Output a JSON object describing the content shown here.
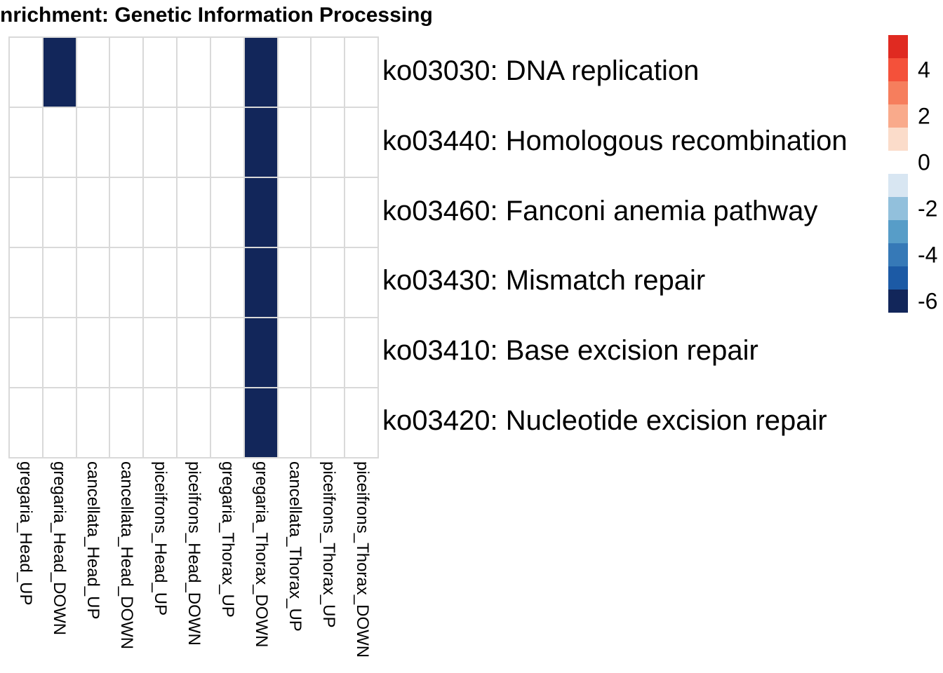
{
  "title": "nrichment: Genetic Information Processing",
  "chart_data": {
    "type": "heatmap",
    "title": "nrichment: Genetic Information Processing",
    "columns": [
      "gregaria_Head_UP",
      "gregaria_Head_DOWN",
      "cancellata_Head_UP",
      "cancellata_Head_DOWN",
      "piceifrons_Head_UP",
      "piceifrons_Head_DOWN",
      "gregaria_Thorax_UP",
      "gregaria_Thorax_DOWN",
      "cancellata_Thorax_UP",
      "piceifrons_Thorax_UP",
      "piceifrons_Thorax_DOWN"
    ],
    "rows": [
      "ko03030: DNA replication",
      "ko03440: Homologous recombination",
      "ko03460: Fanconi anemia pathway",
      "ko03430: Mismatch repair",
      "ko03410: Base excision repair",
      "ko03420: Nucleotide excision repair"
    ],
    "matrix": [
      [
        null,
        -6,
        null,
        null,
        null,
        null,
        null,
        -6,
        null,
        null,
        null
      ],
      [
        null,
        null,
        null,
        null,
        null,
        null,
        null,
        -6,
        null,
        null,
        null
      ],
      [
        null,
        null,
        null,
        null,
        null,
        null,
        null,
        -6,
        null,
        null,
        null
      ],
      [
        null,
        null,
        null,
        null,
        null,
        null,
        null,
        -6,
        null,
        null,
        null
      ],
      [
        null,
        null,
        null,
        null,
        null,
        null,
        null,
        -6,
        null,
        null,
        null
      ],
      [
        null,
        null,
        null,
        null,
        null,
        null,
        null,
        -6,
        null,
        null,
        null
      ]
    ],
    "empty_cell_color": "#ffffff",
    "grid_line_color": "#d9d9d9",
    "legend": {
      "position": "right",
      "block_values": [
        5,
        4,
        3,
        2,
        1,
        0,
        -1,
        -2,
        -3,
        -4,
        -5,
        -6
      ],
      "block_colors": [
        "#e02a21",
        "#f4513a",
        "#f67e5d",
        "#f9aa8b",
        "#fbdcca",
        "#ffffff",
        "#d8e6f2",
        "#92c0dc",
        "#579dc8",
        "#3679b7",
        "#1c5aa5",
        "#12265a"
      ],
      "tick_labels": [
        "4",
        "2",
        "0",
        "-2",
        "-4",
        "-6"
      ],
      "tick_block_index": [
        1,
        3,
        5,
        7,
        9,
        11
      ]
    }
  }
}
